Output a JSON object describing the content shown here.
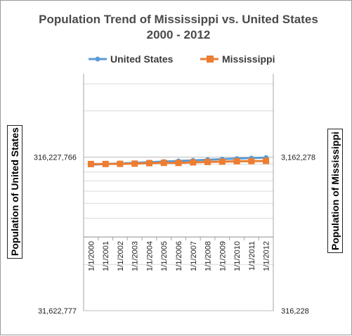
{
  "chart_data": {
    "type": "line",
    "title": "Population Trend of Mississippi vs. United States",
    "subtitle": "2000 - 2012",
    "categories": [
      "1/1/2000",
      "1/1/2001",
      "1/1/2002",
      "1/1/2003",
      "1/1/2004",
      "1/1/2005",
      "1/1/2006",
      "1/1/2007",
      "1/1/2008",
      "1/1/2009",
      "1/1/2010",
      "1/1/2011",
      "1/1/2012"
    ],
    "series": [
      {
        "name": "United States",
        "axis": "left",
        "color": "#5b9bd5",
        "marker": "circle",
        "values": [
          282162411,
          284968955,
          287625193,
          290107933,
          292805643,
          295516599,
          298379912,
          301231207,
          304093966,
          306771529,
          309330219,
          311591917,
          313914040
        ]
      },
      {
        "name": "Mississippi",
        "axis": "right",
        "color": "#ed7d31",
        "marker": "square",
        "values": [
          2848353,
          2852994,
          2858681,
          2868312,
          2889010,
          2900768,
          2897150,
          2921723,
          2940212,
          2951996,
          2970072,
          2977457,
          2984926
        ]
      }
    ],
    "ylabel": "Population of United States",
    "y2label": "Population of Mississippi",
    "y_scale": "log",
    "ylim": [
      31622777,
      3162277660
    ],
    "y2lim": [
      316228,
      31622777
    ],
    "yticks": [
      {
        "value": 31622777,
        "label": "31,622,777"
      },
      {
        "value": 316227766,
        "label": "316,227,766"
      }
    ],
    "y2ticks": [
      {
        "value": 316228,
        "label": "316,228"
      },
      {
        "value": 3162278,
        "label": "3,162,278"
      }
    ],
    "legend": "top",
    "grid": true
  }
}
